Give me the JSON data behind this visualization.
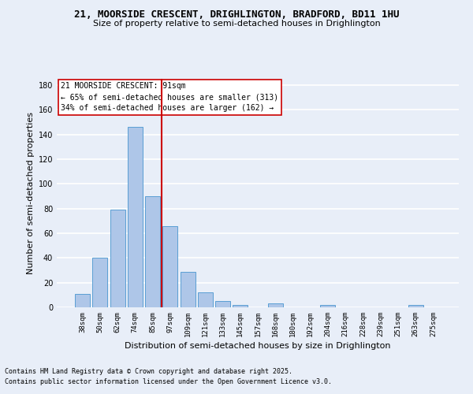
{
  "title": "21, MOORSIDE CRESCENT, DRIGHLINGTON, BRADFORD, BD11 1HU",
  "subtitle": "Size of property relative to semi-detached houses in Drighlington",
  "xlabel": "Distribution of semi-detached houses by size in Drighlington",
  "ylabel": "Number of semi-detached properties",
  "categories": [
    "38sqm",
    "50sqm",
    "62sqm",
    "74sqm",
    "85sqm",
    "97sqm",
    "109sqm",
    "121sqm",
    "133sqm",
    "145sqm",
    "157sqm",
    "168sqm",
    "180sqm",
    "192sqm",
    "204sqm",
    "216sqm",
    "228sqm",
    "239sqm",
    "251sqm",
    "263sqm",
    "275sqm"
  ],
  "values": [
    11,
    40,
    79,
    146,
    90,
    66,
    29,
    12,
    5,
    2,
    0,
    3,
    0,
    0,
    2,
    0,
    0,
    0,
    0,
    2,
    0
  ],
  "bar_color": "#aec6e8",
  "bar_edge_color": "#5a9fd4",
  "vline_pos": 4.5,
  "vline_color": "#cc0000",
  "annotation_title": "21 MOORSIDE CRESCENT: 91sqm",
  "annotation_line1": "← 65% of semi-detached houses are smaller (313)",
  "annotation_line2": "34% of semi-detached houses are larger (162) →",
  "annotation_box_color": "#ffffff",
  "annotation_box_edge": "#cc0000",
  "ylim": [
    0,
    185
  ],
  "yticks": [
    0,
    20,
    40,
    60,
    80,
    100,
    120,
    140,
    160,
    180
  ],
  "footnote1": "Contains HM Land Registry data © Crown copyright and database right 2025.",
  "footnote2": "Contains public sector information licensed under the Open Government Licence v3.0.",
  "bg_color": "#e8eef8",
  "grid_color": "#ffffff",
  "title_fontsize": 9,
  "subtitle_fontsize": 8,
  "axis_label_fontsize": 8,
  "tick_fontsize": 6.5,
  "annotation_fontsize": 7,
  "footnote_fontsize": 6
}
